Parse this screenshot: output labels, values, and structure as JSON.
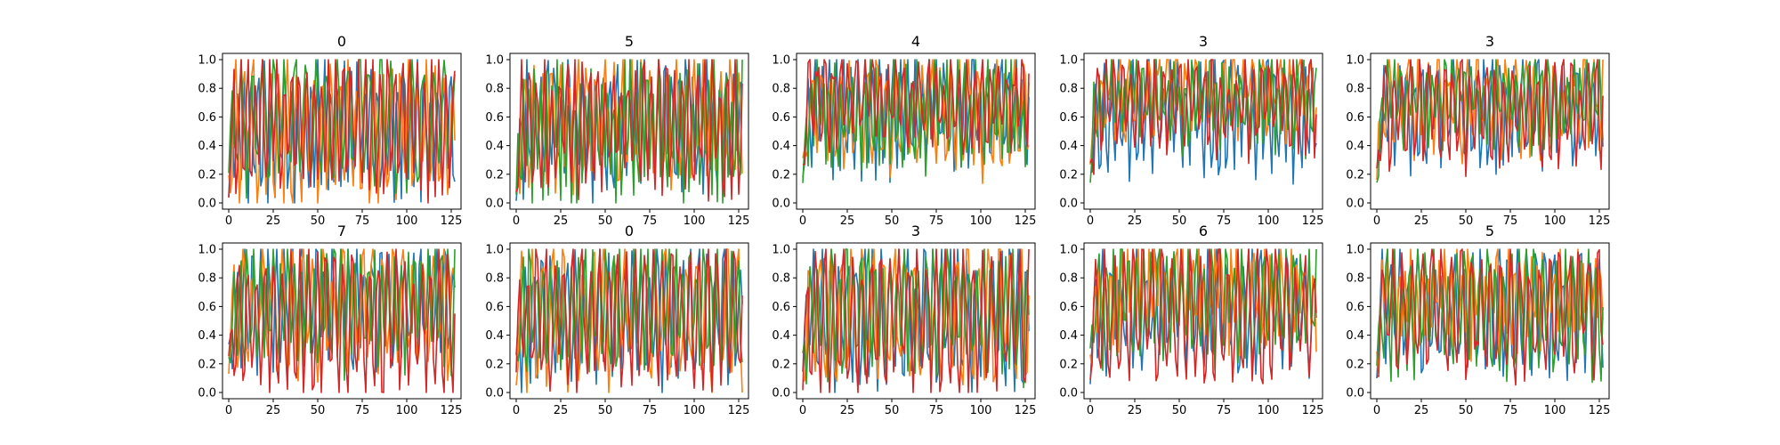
{
  "chart_data": {
    "type": "line",
    "layout": "2x5 grid of line charts",
    "x_range": [
      0,
      127
    ],
    "ylim": [
      0.0,
      1.0
    ],
    "x_ticks": [
      0,
      25,
      50,
      75,
      100,
      125
    ],
    "x_tick_labels": [
      "0",
      "25",
      "50",
      "75",
      "100",
      "125"
    ],
    "y_ticks": [
      0.0,
      0.2,
      0.4,
      0.6,
      0.8,
      1.0
    ],
    "y_tick_labels": [
      "0.0",
      "0.2",
      "0.4",
      "0.6",
      "0.8",
      "1.0"
    ],
    "series_colors": [
      "#1f77b4",
      "#ff7f0e",
      "#2ca02c",
      "#d62728"
    ],
    "series_count": 4,
    "grid": false,
    "legend": "none",
    "panels": [
      {
        "title": "0",
        "means": [
          0.52,
          0.5,
          0.6,
          0.55
        ],
        "amps": [
          0.4,
          0.45,
          0.4,
          0.42
        ]
      },
      {
        "title": "5",
        "means": [
          0.55,
          0.58,
          0.5,
          0.55
        ],
        "amps": [
          0.4,
          0.38,
          0.42,
          0.4
        ]
      },
      {
        "title": "4",
        "means": [
          0.65,
          0.62,
          0.62,
          0.72
        ],
        "amps": [
          0.35,
          0.33,
          0.28,
          0.25
        ]
      },
      {
        "title": "3",
        "means": [
          0.62,
          0.78,
          0.72,
          0.7
        ],
        "amps": [
          0.35,
          0.22,
          0.25,
          0.28
        ]
      },
      {
        "title": "3",
        "means": [
          0.65,
          0.7,
          0.72,
          0.65
        ],
        "amps": [
          0.3,
          0.28,
          0.26,
          0.3
        ]
      },
      {
        "title": "7",
        "means": [
          0.62,
          0.6,
          0.62,
          0.5
        ],
        "amps": [
          0.35,
          0.38,
          0.36,
          0.45
        ]
      },
      {
        "title": "0",
        "means": [
          0.55,
          0.55,
          0.58,
          0.55
        ],
        "amps": [
          0.42,
          0.42,
          0.4,
          0.42
        ]
      },
      {
        "title": "3",
        "means": [
          0.55,
          0.58,
          0.6,
          0.52
        ],
        "amps": [
          0.42,
          0.4,
          0.4,
          0.45
        ]
      },
      {
        "title": "6",
        "means": [
          0.6,
          0.7,
          0.65,
          0.55
        ],
        "amps": [
          0.35,
          0.3,
          0.33,
          0.4
        ]
      },
      {
        "title": "5",
        "means": [
          0.6,
          0.68,
          0.58,
          0.58
        ],
        "amps": [
          0.35,
          0.3,
          0.38,
          0.36
        ]
      }
    ]
  }
}
